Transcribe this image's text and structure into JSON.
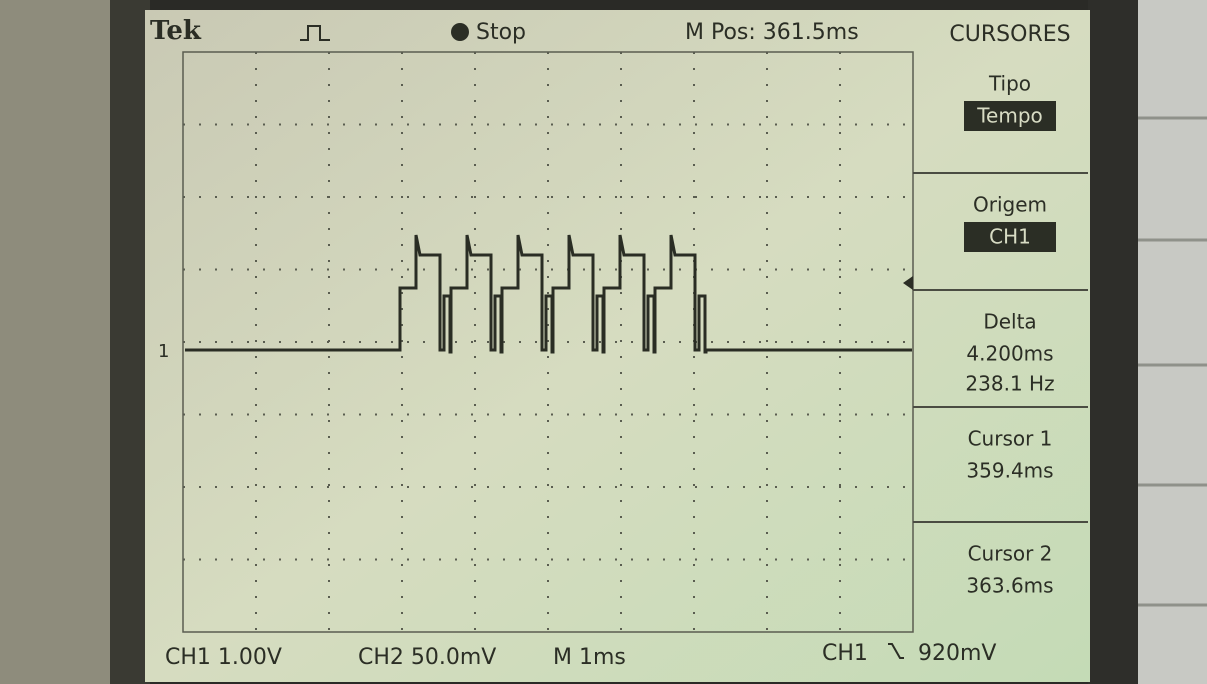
{
  "header": {
    "brand": "Tek",
    "trigger_status": "Stop",
    "position": "M Pos: 361.5ms",
    "menu_title": "CURSORES"
  },
  "marker": "1",
  "menu": [
    {
      "label": "Tipo",
      "value": "Tempo"
    },
    {
      "label": "Origem",
      "value": "CH1"
    },
    {
      "label": "Delta",
      "lines": [
        "4.200ms",
        "238.1 Hz"
      ]
    },
    {
      "label": "Cursor 1",
      "lines": [
        "359.4ms"
      ]
    },
    {
      "label": "Cursor 2",
      "lines": [
        "363.6ms"
      ]
    }
  ],
  "footer": {
    "ch1": "CH1 1.00V",
    "ch2": "CH2 50.0mV",
    "timebase": "M 1ms",
    "trigger": "CH1",
    "trigger_level": "920mV"
  }
}
